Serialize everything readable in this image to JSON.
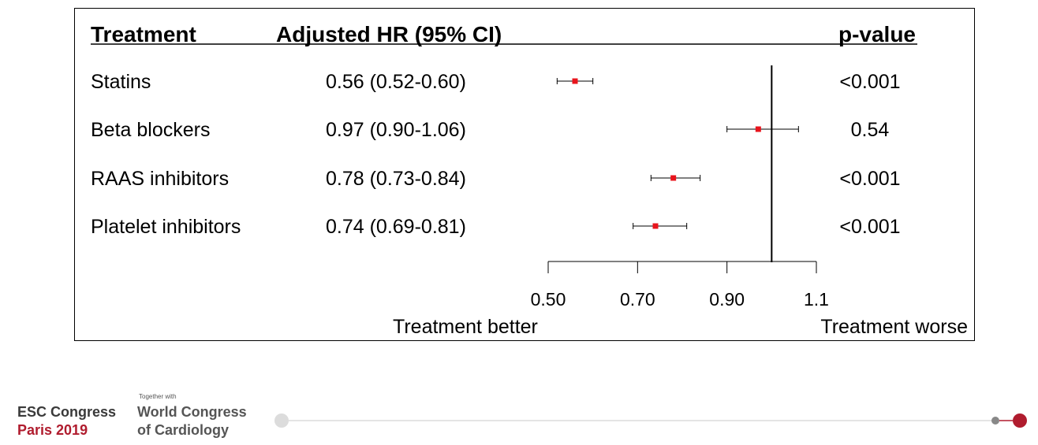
{
  "chart_data": {
    "type": "forest",
    "headers": {
      "treatment": "Treatment",
      "hr": "Adjusted HR (95% CI)",
      "pvalue": "p-value"
    },
    "rows": [
      {
        "label": "Statins",
        "ci_text": "0.56 (0.52-0.60)",
        "hr": 0.56,
        "lo": 0.52,
        "hi": 0.6,
        "p": "<0.001"
      },
      {
        "label": "Beta blockers",
        "ci_text": "0.97 (0.90-1.06)",
        "hr": 0.97,
        "lo": 0.9,
        "hi": 1.06,
        "p": "0.54"
      },
      {
        "label": "RAAS inhibitors",
        "ci_text": "0.78 (0.73-0.84)",
        "hr": 0.78,
        "lo": 0.73,
        "hi": 0.84,
        "p": "<0.001"
      },
      {
        "label": "Platelet inhibitors",
        "ci_text": "0.74 (0.69-0.81)",
        "hr": 0.74,
        "lo": 0.69,
        "hi": 0.81,
        "p": "<0.001"
      }
    ],
    "x_ticks": [
      0.5,
      0.7,
      0.9,
      1.1
    ],
    "x_tick_labels": [
      "0.50",
      "0.70",
      "0.90",
      "1.1"
    ],
    "xlim": [
      0.5,
      1.1
    ],
    "reference_line": 1.0,
    "left_label": "Treatment better",
    "right_label": "Treatment worse",
    "marker_color": "#e8141c"
  },
  "footer": {
    "esc_line1": "ESC Congress",
    "esc_line2": "Paris 2019",
    "together": "Together with",
    "wcc_line1": "World Congress",
    "wcc_line2": "of Cardiology",
    "accent_red": "#b01c2e",
    "line_color": "#dcdcdc"
  }
}
